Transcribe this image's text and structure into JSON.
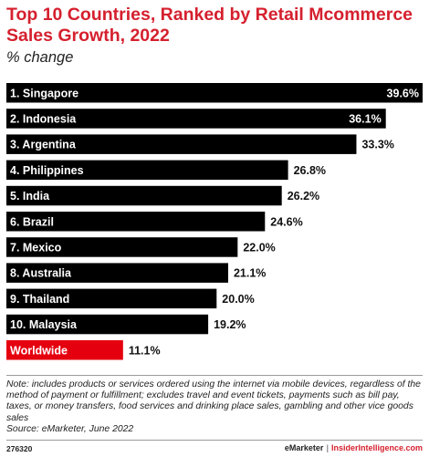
{
  "title": "Top 10 Countries, Ranked by Retail Mcommerce Sales Growth, 2022",
  "subtitle": "% change",
  "chart_data": {
    "type": "bar",
    "orientation": "horizontal",
    "title": "Top 10 Countries, Ranked by Retail Mcommerce Sales Growth, 2022",
    "subtitle": "% change",
    "categories": [
      "1. Singapore",
      "2. Indonesia",
      "3. Argentina",
      "4. Philippines",
      "5. India",
      "6. Brazil",
      "7. Mexico",
      "8. Australia",
      "9. Thailand",
      "10. Malaysia",
      "Worldwide"
    ],
    "values": [
      39.6,
      36.1,
      33.3,
      26.8,
      26.2,
      24.6,
      22.0,
      21.1,
      20.0,
      19.2,
      11.1
    ],
    "value_labels": [
      "39.6%",
      "36.1%",
      "33.3%",
      "26.8%",
      "26.2%",
      "24.6%",
      "22.0%",
      "21.1%",
      "20.0%",
      "19.2%",
      "11.1%"
    ],
    "bar_colors": [
      "#000000",
      "#000000",
      "#000000",
      "#000000",
      "#000000",
      "#000000",
      "#000000",
      "#000000",
      "#000000",
      "#000000",
      "#e5000f"
    ],
    "xlim": [
      0,
      39.6
    ],
    "grid": false,
    "legend": "none"
  },
  "notes": "Note: includes products or services ordered using the internet via mobile devices, regardless of the method of payment or fulfillment; excludes travel and event tickets, payments such as bill pay, taxes, or money transfers, food services and drinking place sales, gambling and other vice goods sales",
  "source": "Source: eMarketer, June 2022",
  "footer": {
    "code": "276320",
    "brand": "eMarketer",
    "separator": "|",
    "site": "InsiderIntelligence.com"
  },
  "colors": {
    "accent": "#d5202e",
    "bar": "#000000",
    "highlight_bar": "#e5000f"
  }
}
